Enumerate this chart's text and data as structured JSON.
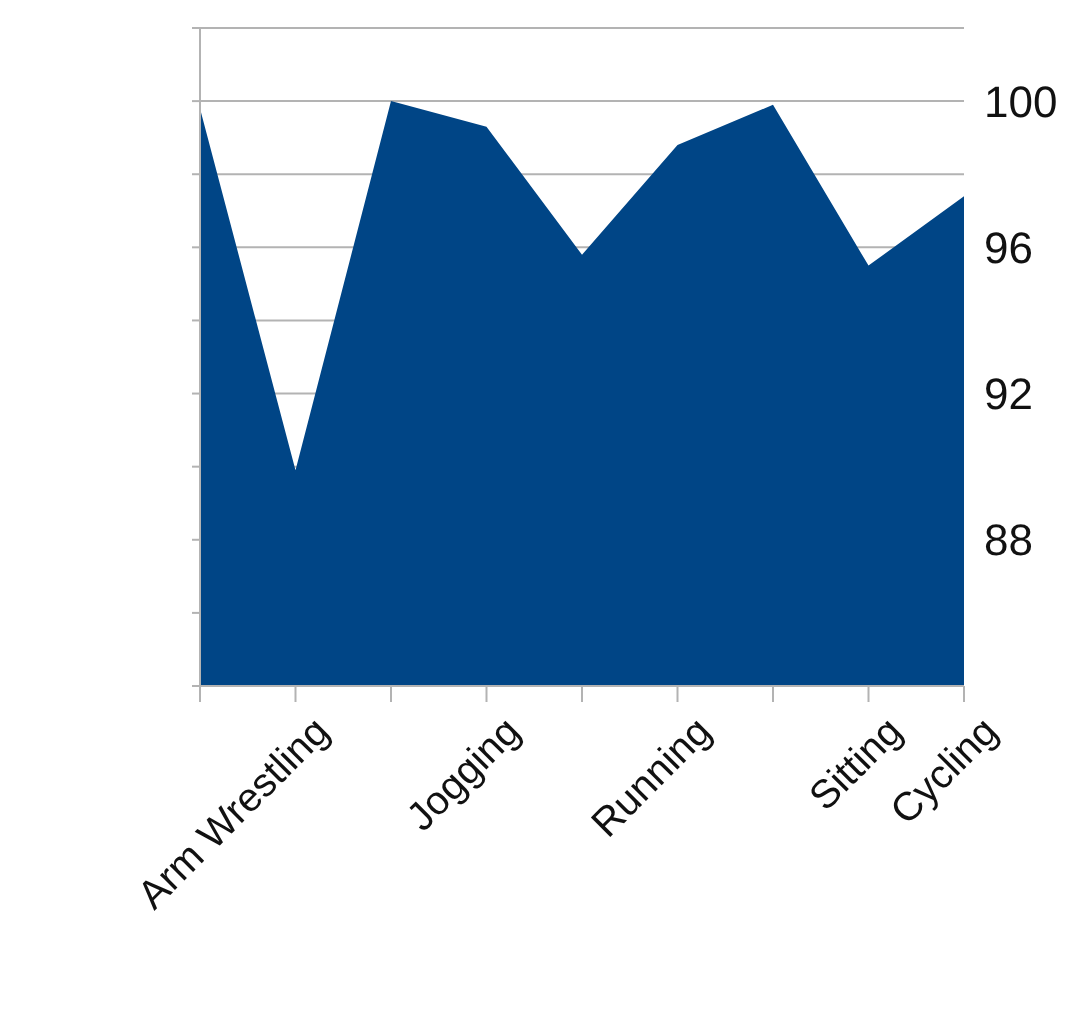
{
  "chart_data": {
    "type": "area",
    "categories": [
      null,
      "Arm Wrestling",
      null,
      "Jogging",
      null,
      "Running",
      null,
      "Sitting",
      "Cycling"
    ],
    "series": [
      {
        "color": "#004586",
        "values": [
          99.8,
          89.9,
          100.0,
          99.3,
          95.8,
          98.8,
          99.9,
          95.5,
          97.4
        ]
      }
    ],
    "ylim": [
      84,
      102
    ],
    "yticks": [
      {
        "value": 86,
        "label": null
      },
      88,
      {
        "value": 90,
        "label": null
      },
      92,
      {
        "value": 94,
        "label": null
      },
      96,
      {
        "value": 98,
        "label": null
      },
      100,
      {
        "value": 102,
        "label": null
      }
    ],
    "grid": "y"
  }
}
